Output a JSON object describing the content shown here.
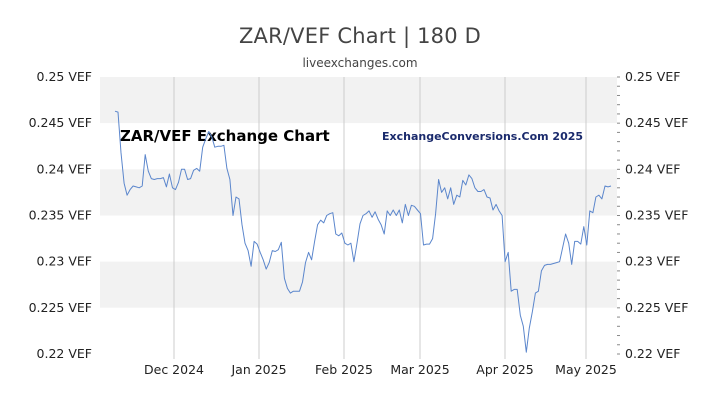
{
  "title": "ZAR/VEF Chart | 180 D",
  "subtitle": "liveexchanges.com",
  "watermark_left": "ZAR/VEF Exchange Chart",
  "watermark_right": "ExchangeConversions.Com 2025",
  "colors": {
    "line": "#5b86cc",
    "band": "#f2f2f2",
    "grid": "#cccccc"
  },
  "chart_data": {
    "type": "line",
    "title": "ZAR/VEF Chart | 180 D",
    "subtitle": "liveexchanges.com",
    "ylim": [
      0.22,
      0.25
    ],
    "y_ticks": [
      0.25,
      0.245,
      0.24,
      0.235,
      0.23,
      0.225,
      0.22
    ],
    "y_tick_labels": [
      "0.25 VEF",
      "0.245 VEF",
      "0.24 VEF",
      "0.235 VEF",
      "0.23 VEF",
      "0.225 VEF",
      "0.22 VEF"
    ],
    "x_tick_labels": [
      "Dec 2024",
      "Jan 2025",
      "Feb 2025",
      "Mar 2025",
      "Apr 2025",
      "May 2025"
    ],
    "grid": true,
    "series": [
      {
        "values": [
          0.2463,
          0.2462,
          0.2418,
          0.2385,
          0.2372,
          0.2378,
          0.2382,
          0.2381,
          0.238,
          0.2382,
          0.2416,
          0.2398,
          0.239,
          0.2389,
          0.239,
          0.239,
          0.2391,
          0.2381,
          0.2395,
          0.238,
          0.2378,
          0.2386,
          0.24,
          0.24,
          0.2389,
          0.239,
          0.2399,
          0.2401,
          0.2398,
          0.2424,
          0.2433,
          0.2441,
          0.2435,
          0.2424,
          0.2425,
          0.2425,
          0.2426,
          0.2401,
          0.2389,
          0.235,
          0.237,
          0.2368,
          0.234,
          0.232,
          0.2312,
          0.2295,
          0.2322,
          0.2319,
          0.231,
          0.2302,
          0.2292,
          0.2299,
          0.2312,
          0.2311,
          0.2313,
          0.2321,
          0.2282,
          0.2271,
          0.2266,
          0.2268,
          0.2268,
          0.2268,
          0.2278,
          0.2299,
          0.231,
          0.2302,
          0.2322,
          0.234,
          0.2345,
          0.2342,
          0.235,
          0.2352,
          0.2353,
          0.233,
          0.2328,
          0.2331,
          0.232,
          0.2318,
          0.232,
          0.23,
          0.232,
          0.2341,
          0.235,
          0.2352,
          0.2355,
          0.2348,
          0.2354,
          0.2346,
          0.234,
          0.233,
          0.2355,
          0.235,
          0.2356,
          0.235,
          0.2356,
          0.2342,
          0.2362,
          0.235,
          0.2361,
          0.236,
          0.2356,
          0.2352,
          0.2318,
          0.2319,
          0.2319,
          0.2325,
          0.2352,
          0.2389,
          0.2375,
          0.238,
          0.2368,
          0.238,
          0.2362,
          0.2372,
          0.237,
          0.2388,
          0.2383,
          0.2394,
          0.239,
          0.238,
          0.2376,
          0.2376,
          0.2378,
          0.237,
          0.2369,
          0.2356,
          0.2362,
          0.2355,
          0.235,
          0.23,
          0.231,
          0.2268,
          0.227,
          0.227,
          0.2242,
          0.223,
          0.2202,
          0.2228,
          0.2246,
          0.2266,
          0.2268,
          0.229,
          0.2296,
          0.2297,
          0.2297,
          0.2298,
          0.2299,
          0.23,
          0.2315,
          0.233,
          0.232,
          0.2297,
          0.2322,
          0.2322,
          0.2319,
          0.2338,
          0.2318,
          0.2355,
          0.2353,
          0.237,
          0.2372,
          0.2368,
          0.2382,
          0.2381,
          0.2382
        ]
      }
    ]
  }
}
